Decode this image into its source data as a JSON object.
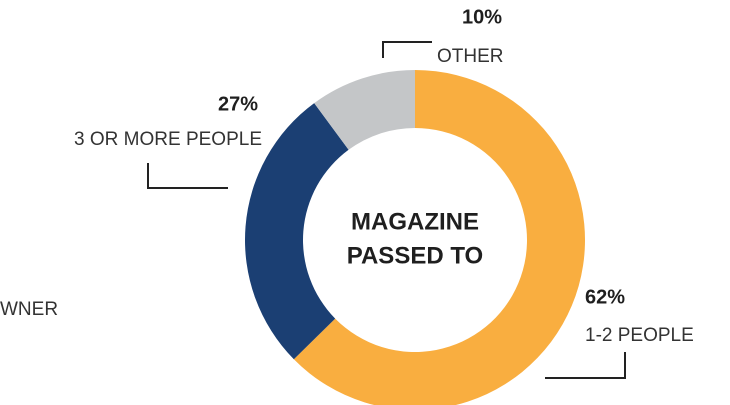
{
  "chart_data": {
    "type": "donut",
    "center_label": [
      "MAGAZINE",
      "PASSED TO"
    ],
    "categories": [
      "1-2 PEOPLE",
      "3 OR MORE PEOPLE",
      "OTHER"
    ],
    "values": [
      62,
      27,
      10
    ],
    "value_labels": [
      "62%",
      "27%",
      "10%"
    ],
    "colors": [
      "#f9ae40",
      "#1b3f73",
      "#c4c6c8"
    ],
    "annotations": [
      "WNER"
    ]
  }
}
